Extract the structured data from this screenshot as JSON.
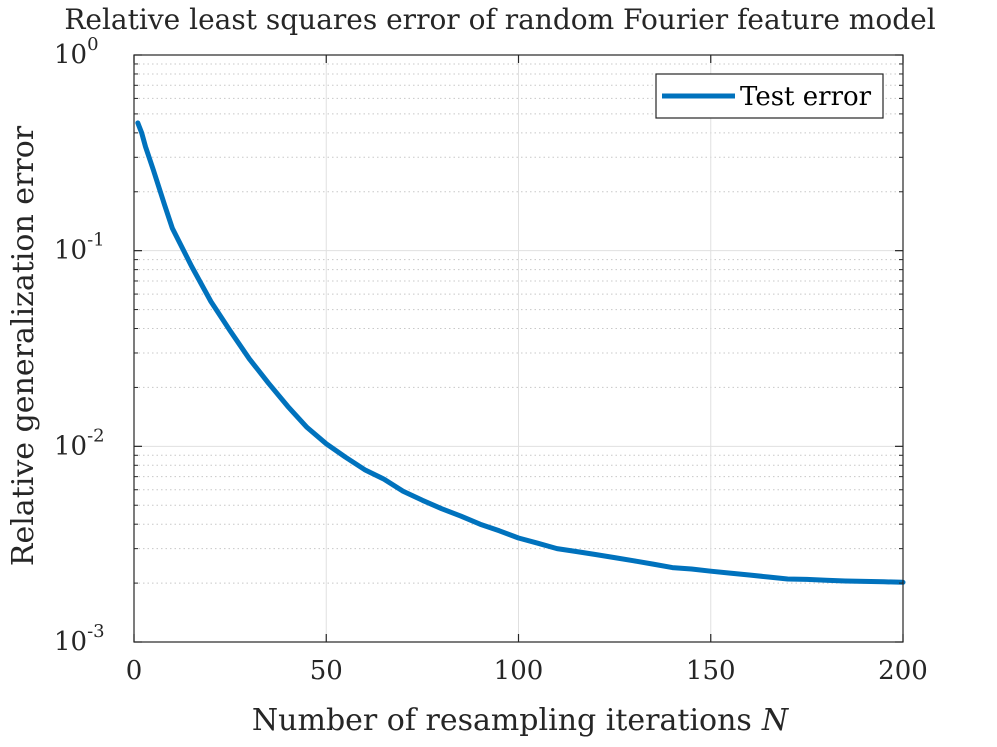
{
  "chart_data": {
    "type": "line",
    "title": "Relative least squares error of random Fourier feature model",
    "xlabel": "Number of resampling iterations",
    "xlabel_var": "N",
    "ylabel": "Relative generalization error",
    "xlim": [
      0,
      200
    ],
    "ylim": [
      0.001,
      1
    ],
    "yscale": "log",
    "grid": true,
    "minor_grid": true,
    "legend_position": "top-right",
    "xticks": [
      0,
      50,
      100,
      150,
      200
    ],
    "xtick_labels": [
      "0",
      "50",
      "100",
      "150",
      "200"
    ],
    "yticks": [
      0.001,
      0.01,
      0.1,
      1
    ],
    "ytick_base": "10",
    "ytick_exponents": [
      "-3",
      "-2",
      "-1",
      "0"
    ],
    "series": [
      {
        "name": "Test error",
        "color": "#0072BD",
        "x": [
          1,
          2,
          3,
          5,
          8,
          10,
          15,
          20,
          25,
          30,
          35,
          40,
          45,
          50,
          55,
          60,
          65,
          70,
          75,
          80,
          85,
          90,
          95,
          100,
          105,
          110,
          115,
          120,
          125,
          130,
          135,
          140,
          145,
          150,
          155,
          160,
          165,
          170,
          175,
          180,
          185,
          190,
          195,
          200
        ],
        "y": [
          0.45,
          0.4,
          0.34,
          0.26,
          0.17,
          0.13,
          0.083,
          0.055,
          0.039,
          0.028,
          0.021,
          0.016,
          0.0125,
          0.0103,
          0.0088,
          0.0076,
          0.0068,
          0.0059,
          0.0053,
          0.0048,
          0.0044,
          0.004,
          0.0037,
          0.0034,
          0.0032,
          0.003,
          0.0029,
          0.0028,
          0.0027,
          0.0026,
          0.0025,
          0.0024,
          0.00236,
          0.0023,
          0.00225,
          0.0022,
          0.00215,
          0.0021,
          0.00209,
          0.00207,
          0.00205,
          0.00204,
          0.00203,
          0.00202
        ]
      }
    ]
  }
}
